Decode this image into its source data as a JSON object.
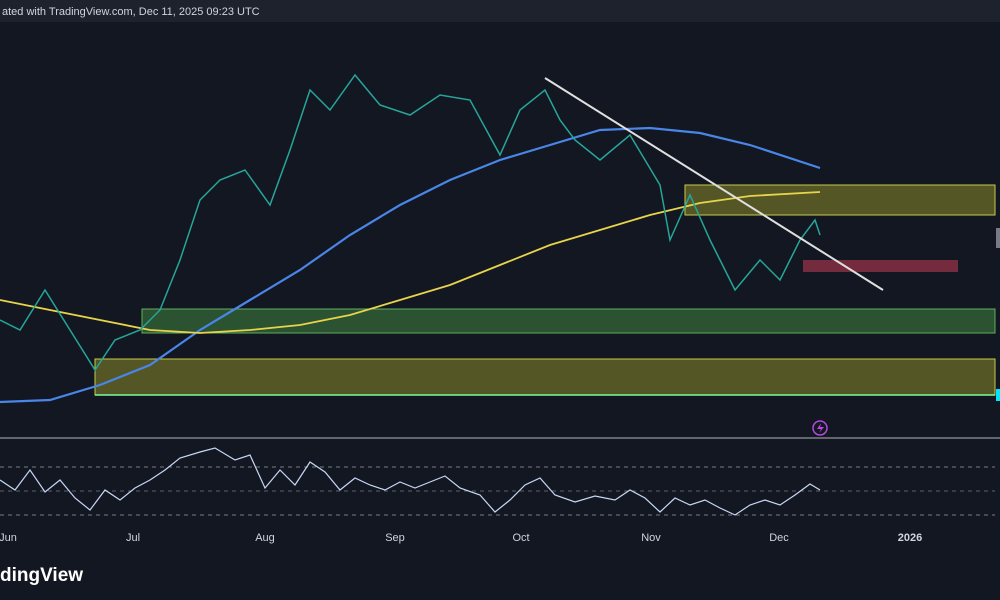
{
  "header": {
    "text": "ated with TradingView.com, Dec 11, 2025 09:23 UTC"
  },
  "x_axis": {
    "labels": [
      "Jun",
      "Jul",
      "Aug",
      "Sep",
      "Oct",
      "Nov",
      "Dec",
      "2026"
    ]
  },
  "footer": {
    "logo": "dingView"
  }
}
